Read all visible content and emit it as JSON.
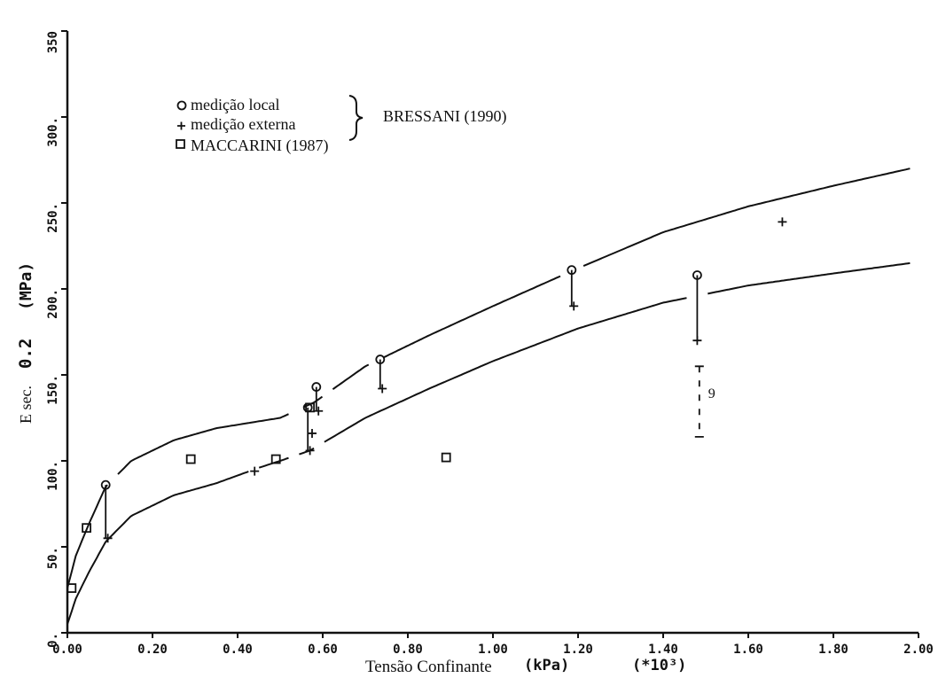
{
  "chart_data": {
    "type": "scatter",
    "xlabel": "Tensão Confinante",
    "xlabel_unit": "(kPa)",
    "x_multiplier": "(*10³)",
    "ylabel_prefix": "E sec.",
    "ylabel_value": "0.2",
    "ylabel_unit": "(MPa)",
    "xlim": [
      0,
      2.0
    ],
    "ylim": [
      0,
      350
    ],
    "x_ticks": [
      "0.00",
      "0.20",
      "0.40",
      "0.60",
      "0.80",
      "1.00",
      "1.20",
      "1.40",
      "1.60",
      "1.80",
      "2.00"
    ],
    "y_ticks": [
      "0.",
      "50.",
      "100.",
      "150.",
      "200.",
      "250.",
      "300.",
      "350"
    ],
    "legend": {
      "local": "medição local",
      "external": "medição externa",
      "maccarini": "MACCARINI (1987)",
      "bressani": "BRESSANI (1990)"
    },
    "series": [
      {
        "name": "medição local",
        "marker": "circle",
        "points": [
          [
            0.09,
            86
          ],
          [
            0.565,
            131
          ],
          [
            0.585,
            143
          ],
          [
            0.735,
            159
          ],
          [
            1.185,
            211
          ],
          [
            1.48,
            208
          ]
        ]
      },
      {
        "name": "medição externa",
        "marker": "plus",
        "points": [
          [
            0.095,
            55
          ],
          [
            0.44,
            94
          ],
          [
            0.57,
            106
          ],
          [
            0.575,
            116
          ],
          [
            0.59,
            129
          ],
          [
            0.74,
            142
          ],
          [
            1.19,
            190
          ],
          [
            1.48,
            170
          ],
          [
            1.68,
            239
          ]
        ]
      },
      {
        "name": "MACCARINI (1987)",
        "marker": "square",
        "points": [
          [
            0.01,
            26
          ],
          [
            0.045,
            61
          ],
          [
            0.29,
            101
          ],
          [
            0.49,
            101
          ],
          [
            0.57,
            131
          ],
          [
            0.89,
            102
          ]
        ]
      }
    ],
    "curves": [
      {
        "points": [
          [
            0.0,
            26
          ],
          [
            0.02,
            45
          ],
          [
            0.05,
            63
          ],
          [
            0.09,
            85
          ],
          [
            0.15,
            100
          ],
          [
            0.25,
            112
          ],
          [
            0.35,
            119
          ],
          [
            0.45,
            123
          ],
          [
            0.5,
            125
          ],
          [
            0.58,
            134
          ],
          [
            0.7,
            155
          ],
          [
            0.85,
            173
          ],
          [
            1.0,
            190
          ],
          [
            1.2,
            212
          ],
          [
            1.4,
            233
          ],
          [
            1.6,
            248
          ],
          [
            1.8,
            260
          ],
          [
            1.98,
            270
          ]
        ],
        "gaps": [
          [
            0.095,
            0.115
          ],
          [
            0.52,
            0.55
          ],
          [
            0.6,
            0.62
          ],
          [
            0.71,
            0.74
          ],
          [
            1.16,
            1.21
          ]
        ]
      },
      {
        "points": [
          [
            0.0,
            5
          ],
          [
            0.02,
            20
          ],
          [
            0.05,
            35
          ],
          [
            0.09,
            53
          ],
          [
            0.15,
            68
          ],
          [
            0.25,
            80
          ],
          [
            0.35,
            87
          ],
          [
            0.45,
            96
          ],
          [
            0.5,
            100
          ],
          [
            0.57,
            106
          ],
          [
            0.7,
            125
          ],
          [
            0.85,
            142
          ],
          [
            1.0,
            158
          ],
          [
            1.2,
            177
          ],
          [
            1.4,
            192
          ],
          [
            1.6,
            202
          ],
          [
            1.8,
            209
          ],
          [
            1.98,
            215
          ]
        ],
        "gaps": [
          [
            0.43,
            0.45
          ],
          [
            0.52,
            0.54
          ],
          [
            0.58,
            0.6
          ],
          [
            1.46,
            1.5
          ]
        ]
      }
    ],
    "connectors": [
      {
        "x": 0.09,
        "y1": 86,
        "y2": 55
      },
      {
        "x": 0.565,
        "y1": 131,
        "y2": 106
      },
      {
        "x": 0.585,
        "y1": 143,
        "y2": 129
      },
      {
        "x": 0.735,
        "y1": 159,
        "y2": 142
      },
      {
        "x": 1.185,
        "y1": 211,
        "y2": 190
      },
      {
        "x": 1.48,
        "y1": 208,
        "y2": 170
      }
    ],
    "range_bar": {
      "x": 1.485,
      "y_top": 155,
      "y_bottom": 114,
      "label": "9"
    }
  }
}
